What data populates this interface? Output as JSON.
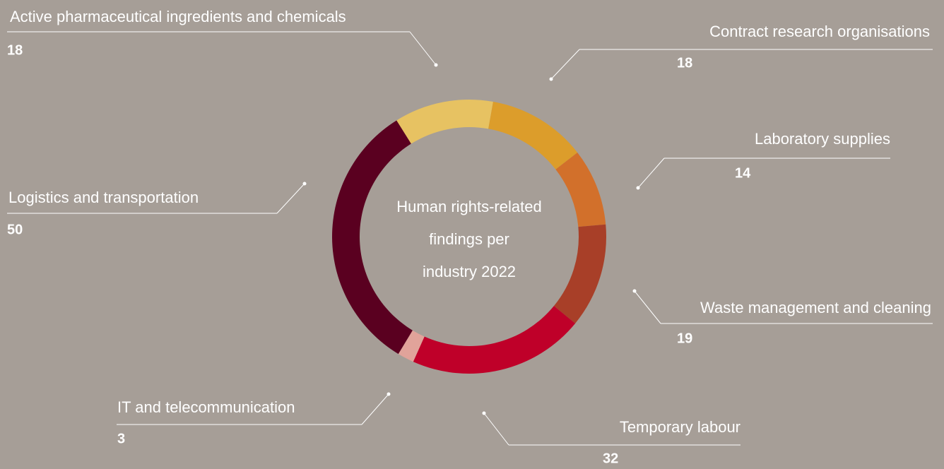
{
  "chart_data": {
    "type": "pie",
    "title": [
      "Human rights-related",
      "findings per",
      "industry 2022"
    ],
    "categories": [
      "Active pharmaceutical ingredients and chemicals",
      "Contract research organisations",
      "Laboratory supplies",
      "Waste management and cleaning",
      "Temporary labour",
      "IT and telecommunication",
      "Logistics and transportation"
    ],
    "values": [
      18,
      18,
      14,
      19,
      32,
      3,
      50
    ],
    "colors": [
      "#e7c262",
      "#dc9d2b",
      "#d2702b",
      "#a83f28",
      "#bf0029",
      "#e1a39a",
      "#5a0020"
    ]
  }
}
